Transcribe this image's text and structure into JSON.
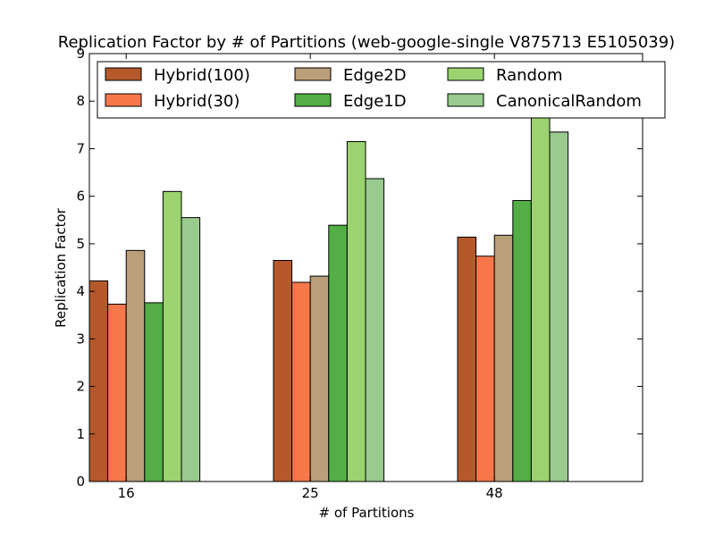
{
  "chart_data": {
    "type": "bar",
    "title": "Replication Factor by # of Partitions (web-google-single V875713 E5105039)",
    "xlabel": "# of Partitions",
    "ylabel": "Replication Factor",
    "categories": [
      "16",
      "25",
      "48"
    ],
    "ylim": [
      0,
      9
    ],
    "yticks": [
      0,
      1,
      2,
      3,
      4,
      5,
      6,
      7,
      8,
      9
    ],
    "grid": false,
    "legend_position": "top",
    "series": [
      {
        "name": "Hybrid(100)",
        "color": "#b5582a",
        "values": [
          4.22,
          4.65,
          5.14
        ]
      },
      {
        "name": "Hybrid(30)",
        "color": "#f7774a",
        "values": [
          3.73,
          4.19,
          4.74
        ]
      },
      {
        "name": "Edge2D",
        "color": "#bb9e7a",
        "values": [
          4.86,
          4.32,
          5.18
        ]
      },
      {
        "name": "Edge1D",
        "color": "#52ae45",
        "values": [
          3.76,
          5.39,
          5.91
        ]
      },
      {
        "name": "Random",
        "color": "#9bd371",
        "values": [
          6.1,
          7.15,
          7.8
        ]
      },
      {
        "name": "CanonicalRandom",
        "color": "#98cb8d",
        "values": [
          5.55,
          6.37,
          7.35
        ]
      }
    ]
  }
}
